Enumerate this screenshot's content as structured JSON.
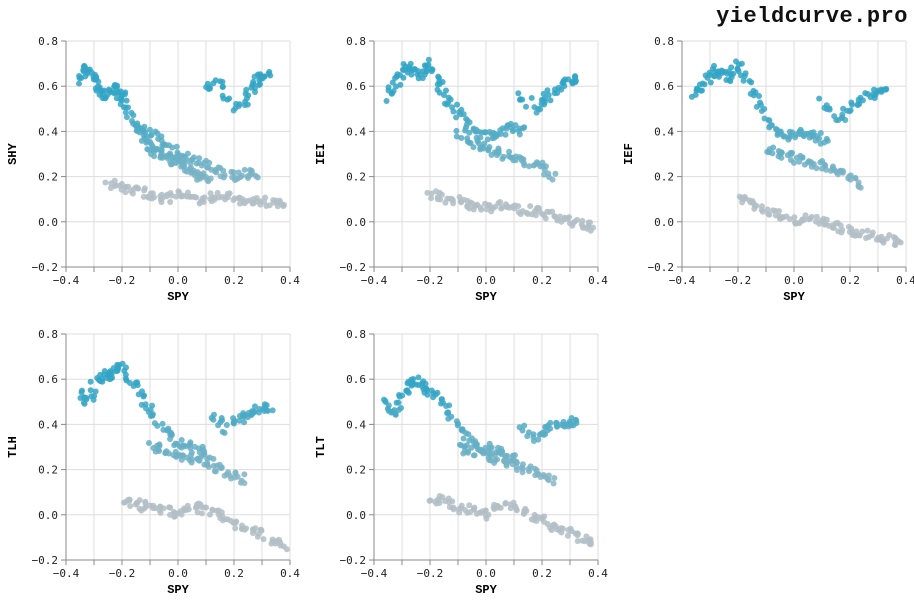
{
  "brand": "yieldcurve.pro",
  "colors": {
    "low": "#b2bec5",
    "high": "#33a5c5",
    "grid": "#dddddd",
    "axis": "#888888"
  },
  "chart_data": [
    {
      "type": "scatter",
      "xlabel": "SPY",
      "ylabel": "SHY",
      "xlim": [
        -0.4,
        0.4
      ],
      "ylim": [
        -0.2,
        0.8
      ],
      "xticks": [
        "−0.4",
        "−0.2",
        "0.0",
        "0.2",
        "0.4"
      ],
      "yticks": [
        "−0.2",
        "0.0",
        "0.2",
        "0.4",
        "0.6",
        "0.8"
      ],
      "series": [
        {
          "x": [
            -0.35,
            -0.33,
            -0.31,
            -0.29,
            -0.27,
            -0.25,
            -0.22,
            -0.2,
            -0.18,
            -0.15,
            -0.12,
            -0.1,
            -0.08,
            -0.05,
            -0.02,
            0.0,
            0.03,
            0.06,
            0.09,
            0.12
          ],
          "y": [
            0.62,
            0.68,
            0.66,
            0.6,
            0.56,
            0.58,
            0.6,
            0.55,
            0.5,
            0.42,
            0.38,
            0.34,
            0.3,
            0.3,
            0.28,
            0.26,
            0.24,
            0.22,
            0.2,
            0.18
          ]
        },
        {
          "x": [
            -0.25,
            -0.2,
            -0.15,
            -0.1,
            -0.05,
            0.0,
            0.05,
            0.1,
            0.15,
            0.2,
            0.25,
            0.3,
            0.35,
            0.38
          ],
          "y": [
            0.17,
            0.16,
            0.14,
            0.12,
            0.1,
            0.12,
            0.1,
            0.1,
            0.12,
            0.1,
            0.1,
            0.09,
            0.08,
            0.06
          ]
        },
        {
          "x": [
            -0.15,
            -0.1,
            -0.05,
            0.0,
            0.05,
            0.1,
            0.15,
            0.2,
            0.25,
            0.28
          ],
          "y": [
            0.42,
            0.4,
            0.35,
            0.3,
            0.28,
            0.25,
            0.22,
            0.2,
            0.22,
            0.2
          ]
        },
        {
          "x": [
            0.1,
            0.15,
            0.2,
            0.25,
            0.28,
            0.3,
            0.32
          ],
          "y": [
            0.6,
            0.61,
            0.5,
            0.55,
            0.62,
            0.64,
            0.65
          ]
        }
      ]
    },
    {
      "type": "scatter",
      "xlabel": "SPY",
      "ylabel": "IEI",
      "xlim": [
        -0.4,
        0.4
      ],
      "ylim": [
        -0.2,
        0.8
      ],
      "xticks": [
        "−0.4",
        "−0.2",
        "0.0",
        "0.2",
        "0.4"
      ],
      "yticks": [
        "−0.2",
        "0.0",
        "0.2",
        "0.4",
        "0.6",
        "0.8"
      ],
      "series": [
        {
          "x": [
            -0.35,
            -0.32,
            -0.29,
            -0.26,
            -0.23,
            -0.2,
            -0.17,
            -0.14,
            -0.1,
            -0.06,
            -0.02,
            0.02,
            0.06,
            0.1,
            0.14
          ],
          "y": [
            0.55,
            0.62,
            0.69,
            0.67,
            0.65,
            0.7,
            0.62,
            0.55,
            0.48,
            0.42,
            0.38,
            0.38,
            0.4,
            0.42,
            0.4
          ]
        },
        {
          "x": [
            -0.2,
            -0.15,
            -0.1,
            -0.05,
            0.0,
            0.05,
            0.1,
            0.15,
            0.2,
            0.25,
            0.3,
            0.35,
            0.38
          ],
          "y": [
            0.12,
            0.11,
            0.09,
            0.07,
            0.06,
            0.08,
            0.06,
            0.05,
            0.04,
            0.02,
            0.0,
            -0.02,
            -0.02
          ]
        },
        {
          "x": [
            -0.1,
            -0.05,
            0.0,
            0.05,
            0.1,
            0.15,
            0.2,
            0.25
          ],
          "y": [
            0.4,
            0.35,
            0.32,
            0.3,
            0.28,
            0.26,
            0.24,
            0.2
          ]
        },
        {
          "x": [
            0.12,
            0.18,
            0.22,
            0.26,
            0.3,
            0.33
          ],
          "y": [
            0.57,
            0.5,
            0.55,
            0.6,
            0.62,
            0.64
          ]
        }
      ]
    },
    {
      "type": "scatter",
      "xlabel": "SPY",
      "ylabel": "IEF",
      "xlim": [
        -0.4,
        0.4
      ],
      "ylim": [
        -0.2,
        0.8
      ],
      "xticks": [
        "−0.4",
        "−0.2",
        "0.0",
        "0.2",
        "0.4"
      ],
      "yticks": [
        "−0.2",
        "0.0",
        "0.2",
        "0.4",
        "0.6",
        "0.8"
      ],
      "series": [
        {
          "x": [
            -0.35,
            -0.32,
            -0.29,
            -0.26,
            -0.23,
            -0.2,
            -0.16,
            -0.12,
            -0.08,
            -0.04,
            0.0,
            0.04,
            0.08,
            0.12
          ],
          "y": [
            0.56,
            0.6,
            0.67,
            0.66,
            0.64,
            0.7,
            0.6,
            0.5,
            0.42,
            0.38,
            0.38,
            0.4,
            0.38,
            0.35
          ]
        },
        {
          "x": [
            -0.2,
            -0.15,
            -0.1,
            -0.05,
            0.0,
            0.05,
            0.1,
            0.15,
            0.2,
            0.25,
            0.3,
            0.35,
            0.39
          ],
          "y": [
            0.1,
            0.08,
            0.05,
            0.03,
            0.0,
            0.02,
            0.0,
            -0.02,
            -0.04,
            -0.05,
            -0.07,
            -0.08,
            -0.1
          ]
        },
        {
          "x": [
            -0.1,
            -0.05,
            0.0,
            0.05,
            0.1,
            0.15,
            0.2,
            0.25
          ],
          "y": [
            0.32,
            0.3,
            0.28,
            0.26,
            0.25,
            0.22,
            0.2,
            0.16
          ]
        },
        {
          "x": [
            0.1,
            0.16,
            0.2,
            0.25,
            0.3,
            0.33
          ],
          "y": [
            0.53,
            0.46,
            0.5,
            0.55,
            0.58,
            0.59
          ]
        }
      ]
    },
    {
      "type": "scatter",
      "xlabel": "SPY",
      "ylabel": "TLH",
      "xlim": [
        -0.4,
        0.4
      ],
      "ylim": [
        -0.2,
        0.8
      ],
      "xticks": [
        "−0.4",
        "−0.2",
        "0.0",
        "0.2",
        "0.4"
      ],
      "yticks": [
        "−0.2",
        "0.0",
        "0.2",
        "0.4",
        "0.6",
        "0.8"
      ],
      "series": [
        {
          "x": [
            -0.35,
            -0.32,
            -0.29,
            -0.26,
            -0.23,
            -0.2,
            -0.16,
            -0.12,
            -0.08,
            -0.04,
            0.0,
            0.04,
            0.08,
            0.12
          ],
          "y": [
            0.54,
            0.5,
            0.6,
            0.62,
            0.62,
            0.66,
            0.58,
            0.5,
            0.44,
            0.36,
            0.32,
            0.3,
            0.28,
            0.26
          ]
        },
        {
          "x": [
            -0.2,
            -0.15,
            -0.1,
            -0.05,
            0.0,
            0.05,
            0.1,
            0.15,
            0.2,
            0.25,
            0.3,
            0.35,
            0.39
          ],
          "y": [
            0.06,
            0.05,
            0.03,
            0.02,
            0.0,
            0.04,
            0.02,
            0.0,
            -0.04,
            -0.06,
            -0.08,
            -0.12,
            -0.15
          ]
        },
        {
          "x": [
            -0.1,
            -0.05,
            0.0,
            0.05,
            0.1,
            0.15,
            0.2,
            0.25
          ],
          "y": [
            0.3,
            0.28,
            0.26,
            0.24,
            0.22,
            0.2,
            0.18,
            0.15
          ]
        },
        {
          "x": [
            0.12,
            0.18,
            0.22,
            0.26,
            0.3,
            0.33
          ],
          "y": [
            0.43,
            0.38,
            0.42,
            0.45,
            0.47,
            0.47
          ]
        }
      ]
    },
    {
      "type": "scatter",
      "xlabel": "SPY",
      "ylabel": "TLT",
      "xlim": [
        -0.4,
        0.4
      ],
      "ylim": [
        -0.2,
        0.8
      ],
      "xticks": [
        "−0.4",
        "−0.2",
        "0.0",
        "0.2",
        "0.4"
      ],
      "yticks": [
        "−0.2",
        "0.0",
        "0.2",
        "0.4",
        "0.6",
        "0.8"
      ],
      "series": [
        {
          "x": [
            -0.36,
            -0.33,
            -0.3,
            -0.27,
            -0.24,
            -0.21,
            -0.17,
            -0.13,
            -0.09,
            -0.05,
            -0.01,
            0.03,
            0.07,
            0.11
          ],
          "y": [
            0.5,
            0.45,
            0.52,
            0.58,
            0.59,
            0.56,
            0.52,
            0.45,
            0.38,
            0.32,
            0.3,
            0.28,
            0.26,
            0.24
          ]
        },
        {
          "x": [
            -0.2,
            -0.15,
            -0.1,
            -0.05,
            0.0,
            0.05,
            0.1,
            0.15,
            0.2,
            0.25,
            0.3,
            0.35,
            0.39
          ],
          "y": [
            0.08,
            0.06,
            0.03,
            0.02,
            0.0,
            0.05,
            0.03,
            0.0,
            -0.03,
            -0.06,
            -0.08,
            -0.11,
            -0.14
          ]
        },
        {
          "x": [
            -0.1,
            -0.05,
            0.0,
            0.05,
            0.1,
            0.15,
            0.2,
            0.25
          ],
          "y": [
            0.3,
            0.28,
            0.26,
            0.24,
            0.22,
            0.2,
            0.18,
            0.14
          ]
        },
        {
          "x": [
            0.12,
            0.18,
            0.22,
            0.26,
            0.3,
            0.33
          ],
          "y": [
            0.39,
            0.34,
            0.38,
            0.4,
            0.41,
            0.42
          ]
        }
      ]
    }
  ]
}
